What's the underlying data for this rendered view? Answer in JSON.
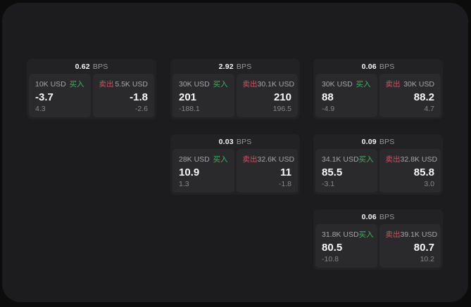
{
  "labels": {
    "bps_unit": "BPS",
    "buy": "买入",
    "sell": "卖出"
  },
  "colors": {
    "backdrop": "#0c0c0d",
    "page_surface": "#1c1c1e",
    "card_background": "#222224",
    "panel_background": "#2a2a2c",
    "buy_green": "#46ad60",
    "sell_red": "#cd5364",
    "value_white": "#f7f7f7",
    "label_gray": "#a6a6a9",
    "delta_gray": "#87878a"
  },
  "cards": [
    {
      "bps": "0.62",
      "buy": {
        "amount": "10K USD",
        "price": "-3.7",
        "delta": "4.3"
      },
      "sell": {
        "amount": "5.5K USD",
        "price": "-1.8",
        "delta": "-2.6"
      }
    },
    {
      "bps": "2.92",
      "buy": {
        "amount": "30K USD",
        "price": "201",
        "delta": "-188.1"
      },
      "sell": {
        "amount": "30.1K USD",
        "price": "210",
        "delta": "196.5"
      }
    },
    {
      "bps": "0.06",
      "buy": {
        "amount": "30K USD",
        "price": "88",
        "delta": "-4.9"
      },
      "sell": {
        "amount": "30K USD",
        "price": "88.2",
        "delta": "4.7"
      }
    },
    {
      "bps": "0.03",
      "buy": {
        "amount": "28K USD",
        "price": "10.9",
        "delta": "1.3"
      },
      "sell": {
        "amount": "32.6K USD",
        "price": "11",
        "delta": "-1.8"
      }
    },
    {
      "bps": "0.09",
      "buy": {
        "amount": "34.1K USD",
        "price": "85.5",
        "delta": "-3.1"
      },
      "sell": {
        "amount": "32.8K USD",
        "price": "85.8",
        "delta": "3.0"
      }
    },
    {
      "bps": "0.06",
      "buy": {
        "amount": "31.8K USD",
        "price": "80.5",
        "delta": "-10.8"
      },
      "sell": {
        "amount": "39.1K USD",
        "price": "80.7",
        "delta": "10.2"
      }
    }
  ]
}
